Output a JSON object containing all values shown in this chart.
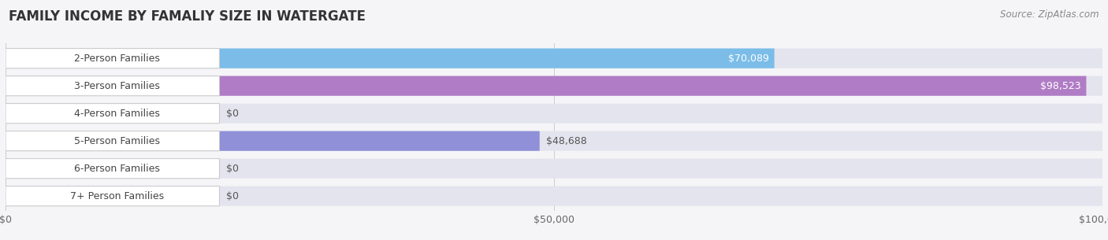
{
  "title": "FAMILY INCOME BY FAMALIY SIZE IN WATERGATE",
  "source": "Source: ZipAtlas.com",
  "categories": [
    "2-Person Families",
    "3-Person Families",
    "4-Person Families",
    "5-Person Families",
    "6-Person Families",
    "7+ Person Families"
  ],
  "values": [
    70089,
    98523,
    0,
    48688,
    0,
    0
  ],
  "bar_colors": [
    "#7bbde8",
    "#b07cc6",
    "#5ecbba",
    "#9090d8",
    "#f490ab",
    "#f5c990"
  ],
  "xlim": [
    0,
    100000
  ],
  "xticks": [
    0,
    50000,
    100000
  ],
  "xtick_labels": [
    "$0",
    "$50,000",
    "$100,000"
  ],
  "background_color": "#f5f5f8",
  "bar_bg_color": "#e4e4ee",
  "title_fontsize": 12,
  "label_fontsize": 9,
  "value_fontsize": 9,
  "source_fontsize": 8.5
}
